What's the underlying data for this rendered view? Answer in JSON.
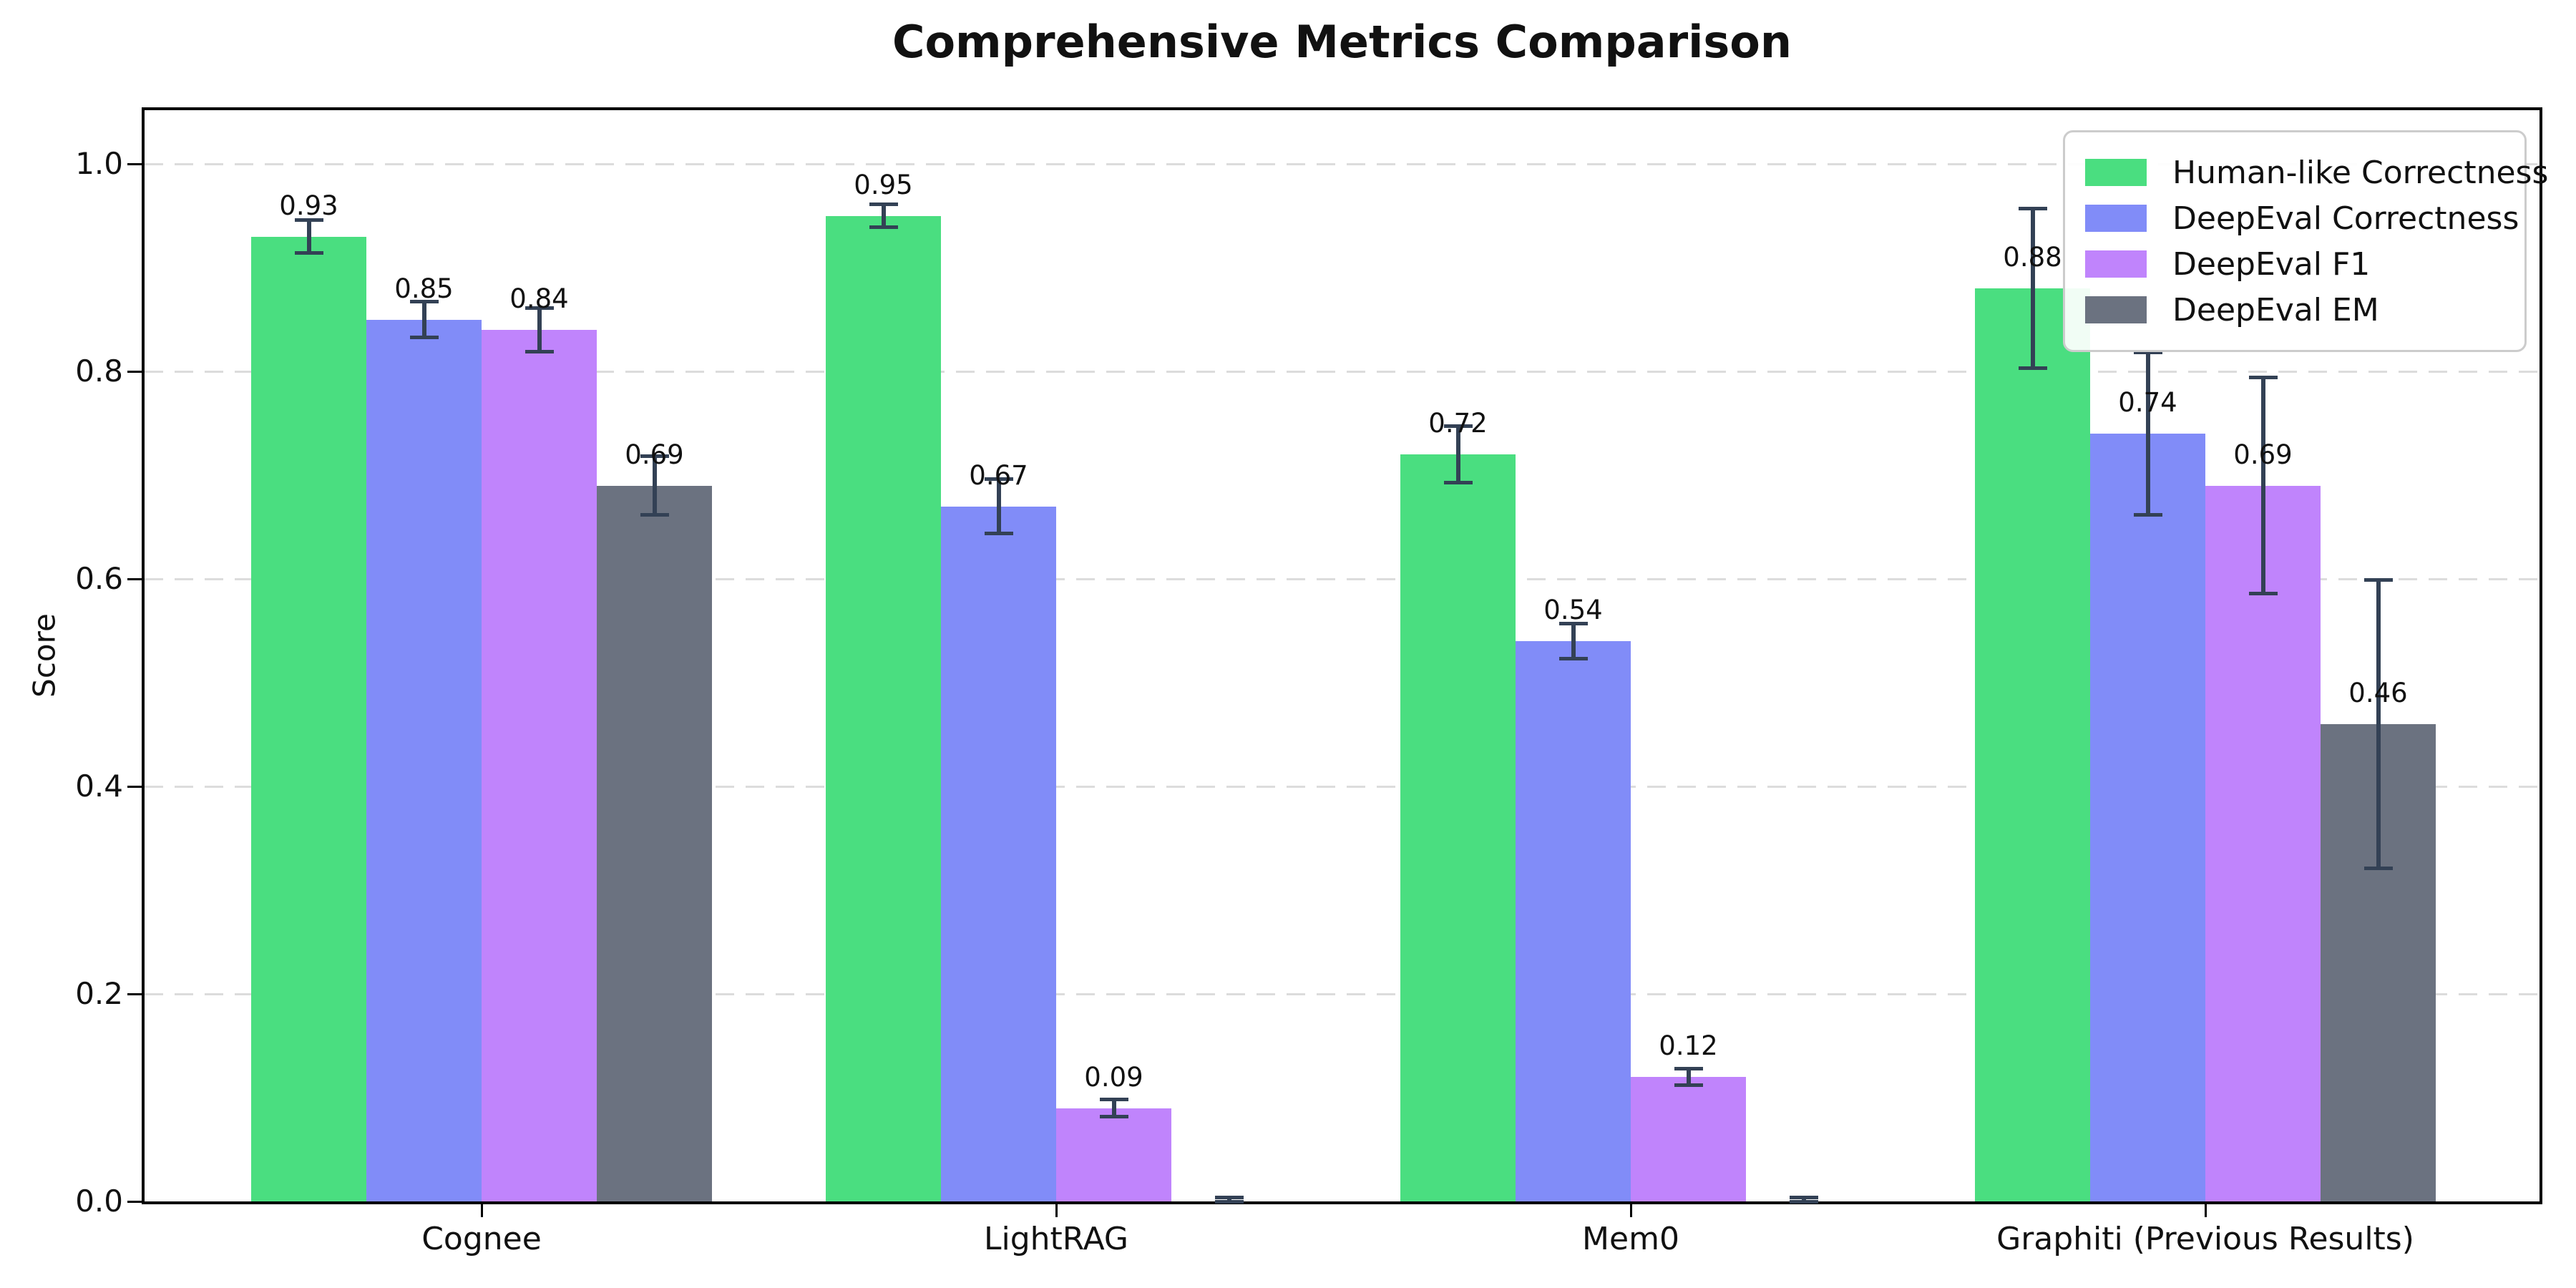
{
  "chart_data": {
    "type": "bar",
    "title": "Comprehensive Metrics Comparison",
    "ylabel": "Score",
    "xlabel": "",
    "categories": [
      "Cognee",
      "LightRAG",
      "Mem0",
      "Graphiti (Previous Results)"
    ],
    "series": [
      {
        "name": "Human-like Correctness",
        "color": "#4ade80",
        "values": [
          0.93,
          0.95,
          0.72,
          0.88
        ],
        "errors": [
          0.016,
          0.011,
          0.027,
          0.077
        ],
        "labels": [
          "0.93",
          "0.95",
          "0.72",
          "0.88"
        ]
      },
      {
        "name": "DeepEval Correctness",
        "color": "#818cf8",
        "values": [
          0.85,
          0.67,
          0.54,
          0.74
        ],
        "errors": [
          0.017,
          0.026,
          0.017,
          0.078
        ],
        "labels": [
          "0.85",
          "0.67",
          "0.54",
          "0.74"
        ]
      },
      {
        "name": "DeepEval F1",
        "color": "#c084fc",
        "values": [
          0.84,
          0.09,
          0.12,
          0.69
        ],
        "errors": [
          0.021,
          0.008,
          0.008,
          0.104
        ],
        "labels": [
          "0.84",
          "0.09",
          "0.12",
          "0.69"
        ]
      },
      {
        "name": "DeepEval EM",
        "color": "#6b7280",
        "values": [
          0.69,
          0.0,
          0.0,
          0.46
        ],
        "errors": [
          0.028,
          0.004,
          0.004,
          0.139
        ],
        "labels": [
          "0.69",
          "",
          "",
          "0.46"
        ]
      }
    ],
    "yticks": [
      0.0,
      0.2,
      0.4,
      0.6,
      0.8,
      1.0
    ],
    "ytick_labels": [
      "0.0",
      "0.2",
      "0.4",
      "0.6",
      "0.8",
      "1.0"
    ],
    "ylim": [
      0.0,
      1.057
    ],
    "grid": "dashed horizontal gridlines at y ticks",
    "legend_position": "upper right",
    "error_bar_color": "#334155",
    "grid_color": "#dcdcdc",
    "axis_color": "#000000",
    "background": "#ffffff"
  }
}
